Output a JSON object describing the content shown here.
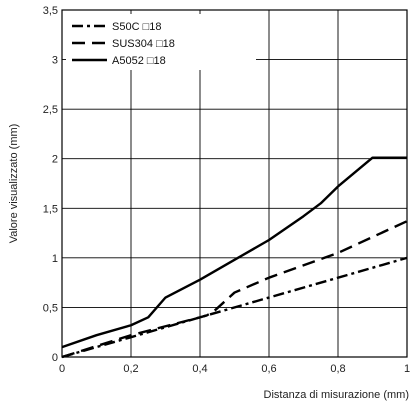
{
  "chart_data": {
    "type": "line",
    "title": "",
    "xlabel": "Distanza di misurazione (mm)",
    "ylabel": "Valore visualizzato (mm)",
    "xlim": [
      0,
      1
    ],
    "ylim": [
      0,
      3.5
    ],
    "x_ticks": [
      0,
      0.2,
      0.4,
      0.6,
      0.8,
      1
    ],
    "x_tick_labels": [
      "0",
      "0,2",
      "0,4",
      "0,6",
      "0,8",
      "1"
    ],
    "y_ticks": [
      0,
      0.5,
      1,
      1.5,
      2,
      2.5,
      3,
      3.5
    ],
    "y_tick_labels": [
      "0",
      "0,5",
      "1",
      "1,5",
      "2",
      "2,5",
      "3",
      "3,5"
    ],
    "grid": true,
    "legend_position": "top-left",
    "series": [
      {
        "name": "S50C □18",
        "style": "dash-dot",
        "color": "#000000",
        "points": [
          [
            0,
            0
          ],
          [
            0.2,
            0.2
          ],
          [
            0.4,
            0.4
          ],
          [
            0.6,
            0.6
          ],
          [
            0.8,
            0.8
          ],
          [
            1.0,
            1.0
          ]
        ]
      },
      {
        "name": "SUS304 □18",
        "style": "dashed",
        "color": "#000000",
        "points": [
          [
            0,
            0
          ],
          [
            0.2,
            0.22
          ],
          [
            0.4,
            0.4
          ],
          [
            0.42,
            0.42
          ],
          [
            0.44,
            0.46
          ],
          [
            0.5,
            0.65
          ],
          [
            0.6,
            0.8
          ],
          [
            0.8,
            1.05
          ],
          [
            1.0,
            1.37
          ]
        ]
      },
      {
        "name": "A5052 □18",
        "style": "solid",
        "color": "#000000",
        "points": [
          [
            0,
            0.1
          ],
          [
            0.1,
            0.22
          ],
          [
            0.2,
            0.32
          ],
          [
            0.25,
            0.4
          ],
          [
            0.3,
            0.6
          ],
          [
            0.4,
            0.78
          ],
          [
            0.5,
            0.98
          ],
          [
            0.6,
            1.18
          ],
          [
            0.7,
            1.42
          ],
          [
            0.75,
            1.55
          ],
          [
            0.8,
            1.72
          ],
          [
            0.9,
            2.01
          ],
          [
            1.0,
            2.01
          ]
        ]
      }
    ]
  }
}
